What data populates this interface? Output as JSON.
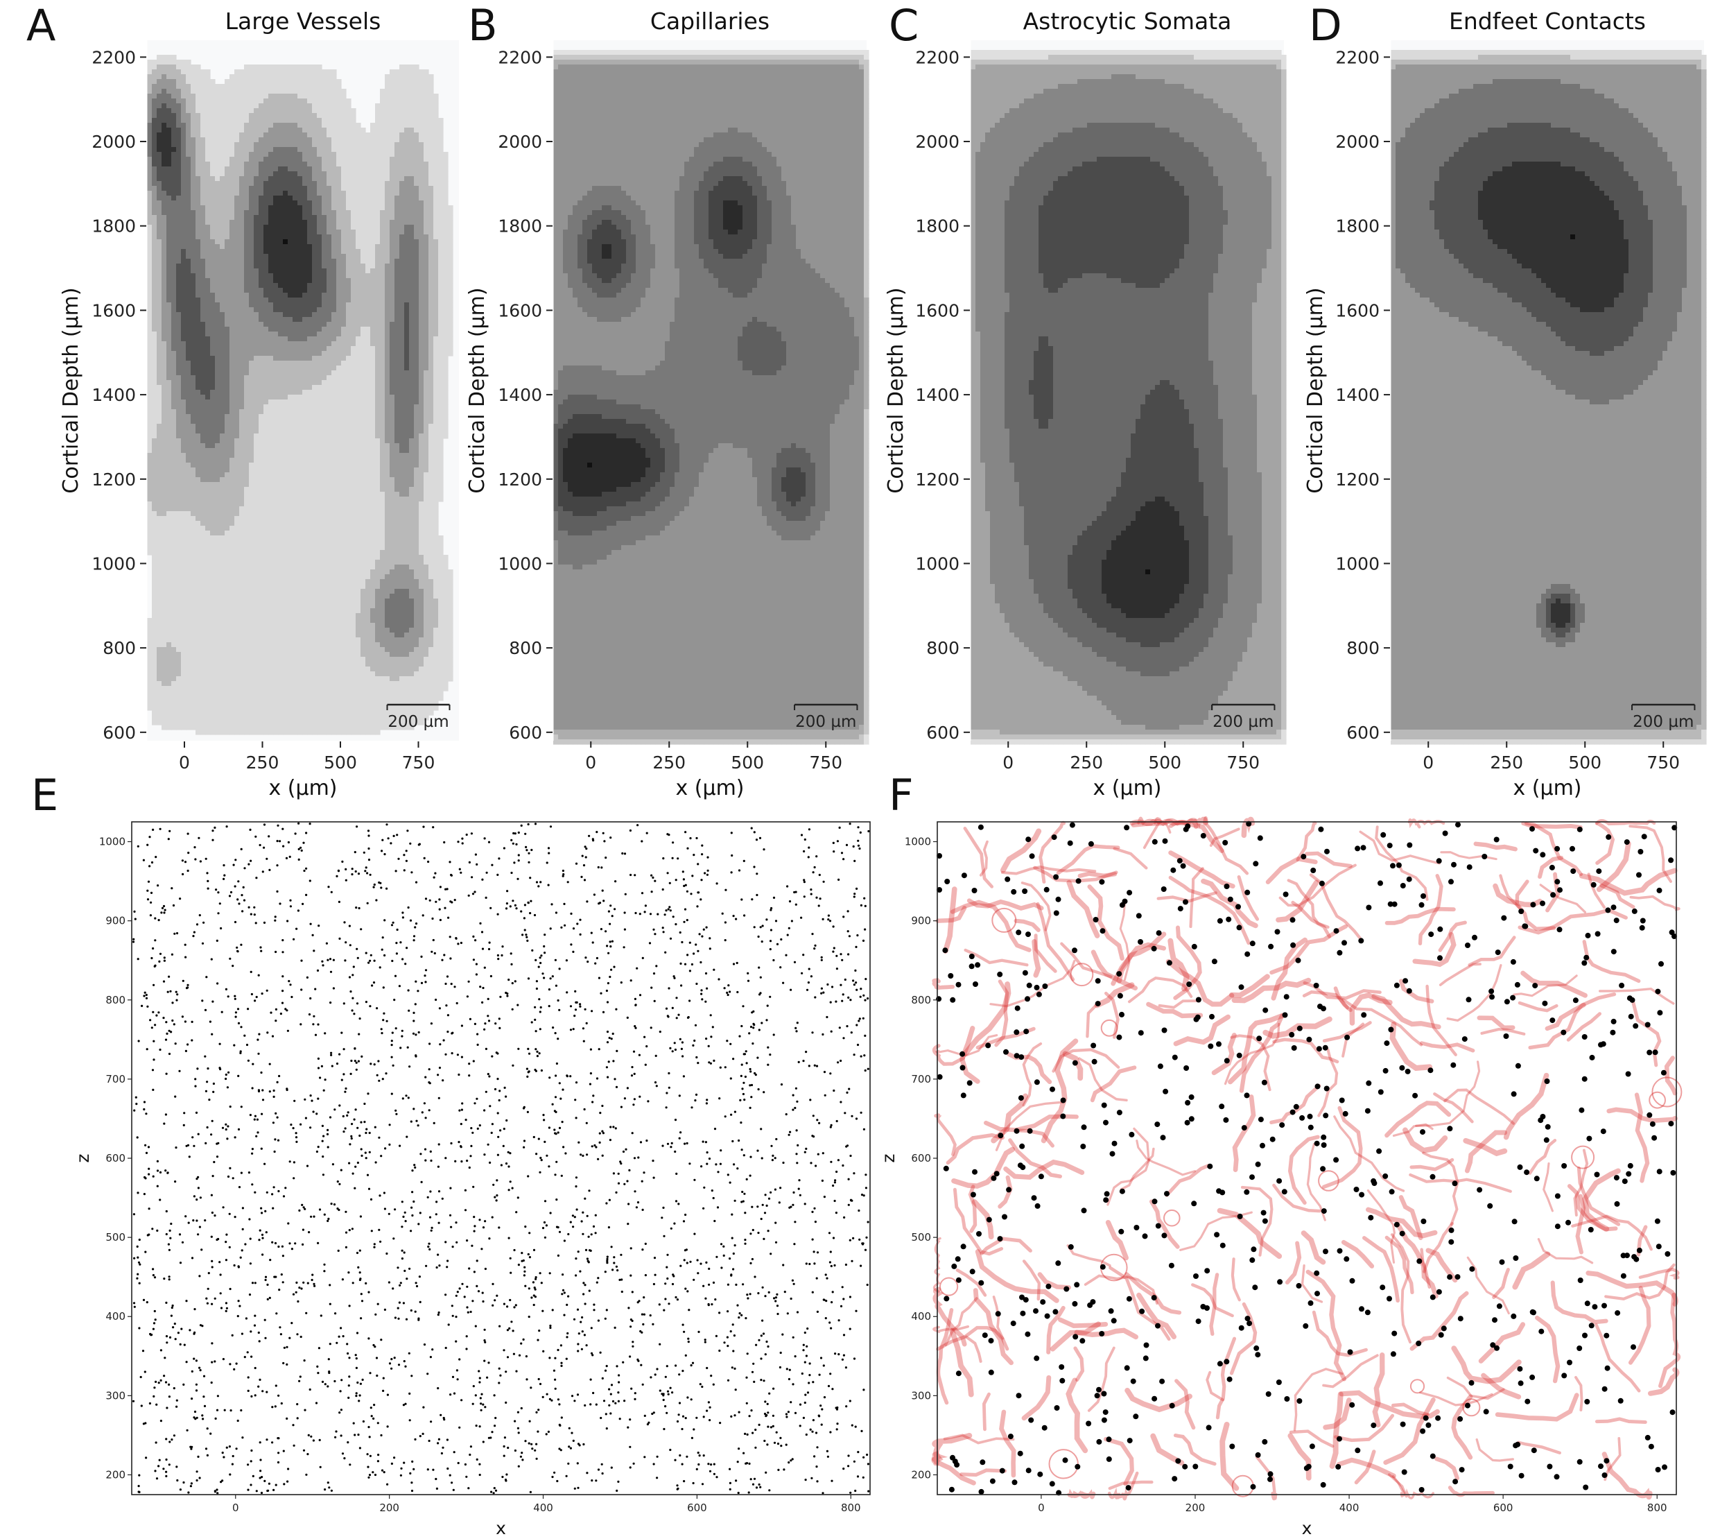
{
  "panels": {
    "A": {
      "letter": "A",
      "title": "Large Vessels"
    },
    "B": {
      "letter": "B",
      "title": "Capillaries"
    },
    "C": {
      "letter": "C",
      "title": "Astrocytic Somata"
    },
    "D": {
      "letter": "D",
      "title": "Endfeet Contacts"
    },
    "E": {
      "letter": "E"
    },
    "F": {
      "letter": "F"
    }
  },
  "scalebar_label": "200 µm",
  "chart_data": [
    {
      "type": "heatmap",
      "panel": "A",
      "title": "Large Vessels",
      "xlabel": "x (µm)",
      "ylabel": "Cortical Depth (µm)",
      "xlim": [
        -120,
        880
      ],
      "ylim": [
        580,
        2240
      ],
      "xticks": [
        0,
        250,
        500,
        750
      ],
      "yticks": [
        600,
        800,
        1000,
        1200,
        1400,
        1600,
        1800,
        2000,
        2200
      ],
      "colormap": "greys",
      "levels": 7,
      "peaks": [
        {
          "x": 320,
          "y": 1780,
          "sx": 110,
          "sy": 190,
          "v": 0.95
        },
        {
          "x": -70,
          "y": 2010,
          "sx": 55,
          "sy": 110,
          "v": 0.75
        },
        {
          "x": -10,
          "y": 1700,
          "sx": 60,
          "sy": 220,
          "v": 0.6
        },
        {
          "x": 90,
          "y": 1420,
          "sx": 75,
          "sy": 190,
          "v": 0.55
        },
        {
          "x": 720,
          "y": 1700,
          "sx": 60,
          "sy": 230,
          "v": 0.55
        },
        {
          "x": 700,
          "y": 1330,
          "sx": 55,
          "sy": 200,
          "v": 0.45
        },
        {
          "x": 690,
          "y": 880,
          "sx": 80,
          "sy": 90,
          "v": 0.55
        },
        {
          "x": 460,
          "y": 1620,
          "sx": 90,
          "sy": 110,
          "v": 0.3
        },
        {
          "x": -90,
          "y": 1200,
          "sx": 50,
          "sy": 80,
          "v": 0.25
        },
        {
          "x": -60,
          "y": 760,
          "sx": 50,
          "sy": 60,
          "v": 0.2
        },
        {
          "x": 240,
          "y": 1050,
          "sx": 220,
          "sy": 320,
          "v": 0.12
        },
        {
          "x": 380,
          "y": 700,
          "sx": 260,
          "sy": 110,
          "v": 0.12
        }
      ],
      "scalebar": {
        "length": 200,
        "unit": "µm"
      }
    },
    {
      "type": "heatmap",
      "panel": "B",
      "title": "Capillaries",
      "xlabel": "x (µm)",
      "ylabel": "Cortical Depth (µm)",
      "xlim": [
        -120,
        880
      ],
      "ylim": [
        580,
        2240
      ],
      "xticks": [
        0,
        250,
        500,
        750
      ],
      "yticks": [
        600,
        800,
        1000,
        1200,
        1400,
        1600,
        1800,
        2000,
        2200
      ],
      "colormap": "greys",
      "levels": 9,
      "peaks": [
        {
          "x": -50,
          "y": 1230,
          "sx": 90,
          "sy": 120,
          "v": 0.45
        },
        {
          "x": 140,
          "y": 1240,
          "sx": 100,
          "sy": 90,
          "v": 0.45
        },
        {
          "x": 50,
          "y": 1740,
          "sx": 70,
          "sy": 80,
          "v": 0.45
        },
        {
          "x": 450,
          "y": 1830,
          "sx": 90,
          "sy": 100,
          "v": 0.45
        },
        {
          "x": 650,
          "y": 1180,
          "sx": 60,
          "sy": 70,
          "v": 0.35
        },
        {
          "x": 550,
          "y": 1500,
          "sx": 200,
          "sy": 150,
          "v": 0.2
        }
      ],
      "scalebar": {
        "length": 200,
        "unit": "µm"
      }
    },
    {
      "type": "heatmap",
      "panel": "C",
      "title": "Astrocytic Somata",
      "xlabel": "x (µm)",
      "ylabel": "Cortical Depth (µm)",
      "xlim": [
        -120,
        880
      ],
      "ylim": [
        580,
        2240
      ],
      "xticks": [
        0,
        250,
        500,
        750
      ],
      "yticks": [
        600,
        800,
        1000,
        1200,
        1400,
        1600,
        1800,
        2000,
        2200
      ],
      "colormap": "greys",
      "levels": 8,
      "peaks": [
        {
          "x": 350,
          "y": 1850,
          "sx": 260,
          "sy": 160,
          "v": 0.5
        },
        {
          "x": 500,
          "y": 1200,
          "sx": 160,
          "sy": 330,
          "v": 0.5
        },
        {
          "x": 100,
          "y": 1400,
          "sx": 110,
          "sy": 250,
          "v": 0.4
        },
        {
          "x": 350,
          "y": 950,
          "sx": 200,
          "sy": 120,
          "v": 0.4
        }
      ],
      "scalebar": {
        "length": 200,
        "unit": "µm"
      }
    },
    {
      "type": "heatmap",
      "panel": "D",
      "title": "Endfeet Contacts",
      "xlabel": "x (µm)",
      "ylabel": "Cortical Depth (µm)",
      "xlim": [
        -120,
        880
      ],
      "ylim": [
        580,
        2240
      ],
      "xticks": [
        0,
        250,
        500,
        750
      ],
      "yticks": [
        600,
        800,
        1000,
        1200,
        1400,
        1600,
        1800,
        2000,
        2200
      ],
      "colormap": "greys",
      "levels": 7,
      "peaks": [
        {
          "x": 300,
          "y": 1850,
          "sx": 260,
          "sy": 170,
          "v": 0.5
        },
        {
          "x": 550,
          "y": 1650,
          "sx": 150,
          "sy": 170,
          "v": 0.35
        },
        {
          "x": 420,
          "y": 880,
          "sx": 40,
          "sy": 40,
          "v": 0.6
        }
      ],
      "scalebar": {
        "length": 200,
        "unit": "µm"
      }
    },
    {
      "type": "scatter",
      "panel": "E",
      "xlabel": "x",
      "ylabel": "z",
      "xlim": [
        -135,
        825
      ],
      "ylim": [
        175,
        1025
      ],
      "xticks": [
        0,
        200,
        400,
        600,
        800
      ],
      "yticks": [
        200,
        300,
        400,
        500,
        600,
        700,
        800,
        900,
        1000
      ],
      "point_color": "#000000",
      "n_points": 3200,
      "point_size": 1.6
    },
    {
      "type": "scatter",
      "panel": "F",
      "xlabel": "x",
      "ylabel": "z",
      "xlim": [
        -135,
        825
      ],
      "ylim": [
        175,
        1025
      ],
      "xticks": [
        0,
        200,
        400,
        600,
        800
      ],
      "yticks": [
        200,
        300,
        400,
        500,
        600,
        700,
        800,
        900,
        1000
      ],
      "point_color": "#000000",
      "vessel_color": "#d62728",
      "n_vessels": 300,
      "n_points": 620,
      "point_size": 4
    }
  ]
}
